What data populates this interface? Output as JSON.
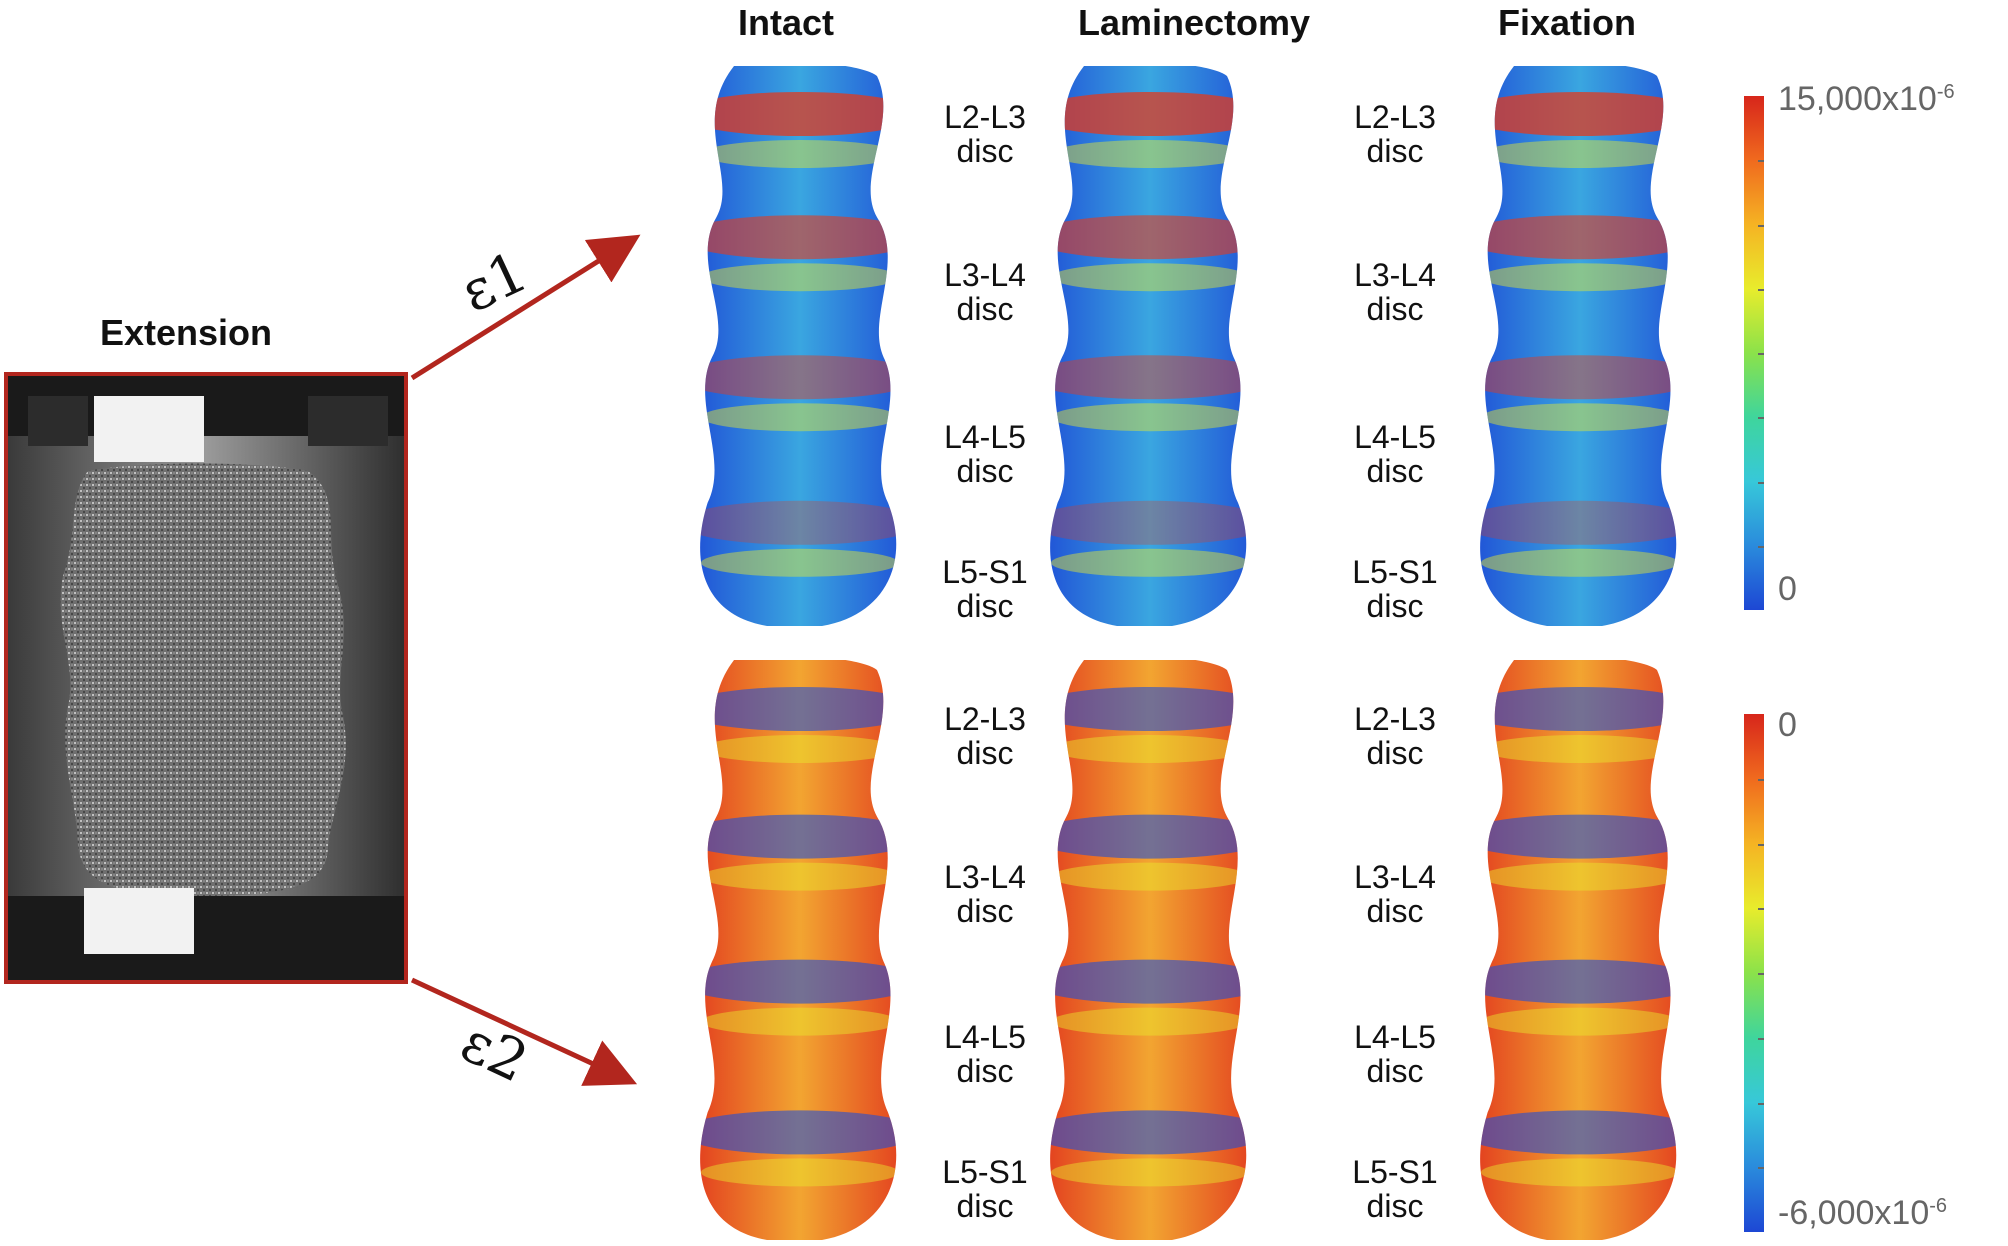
{
  "photo_panel": {
    "label": "Extension"
  },
  "strain_labels": {
    "upper": "ε1",
    "lower": "ε2"
  },
  "columns": [
    {
      "label": "Intact"
    },
    {
      "label": "Laminectomy"
    },
    {
      "label": "Fixation"
    }
  ],
  "discs": [
    {
      "level": "L2-L3",
      "word": "disc"
    },
    {
      "level": "L3-L4",
      "word": "disc"
    },
    {
      "level": "L4-L5",
      "word": "disc"
    },
    {
      "level": "L5-S1",
      "word": "disc"
    }
  ],
  "colorbars": {
    "upper": {
      "max_base": "15,000x10",
      "max_exp": "-6",
      "min": "0",
      "colors": [
        "#d7261b",
        "#f06a1e",
        "#f5b323",
        "#e8ec2c",
        "#8be24a",
        "#3fd59c",
        "#37c8d9",
        "#2a8bdc",
        "#1d47d4"
      ]
    },
    "lower": {
      "max": "0",
      "min_base": "-6,000x10",
      "min_exp": "-6",
      "colors": [
        "#d7261b",
        "#f06a1e",
        "#f5b323",
        "#e8ec2c",
        "#8be24a",
        "#3fd59c",
        "#37c8d9",
        "#2a8bdc",
        "#1d47d4"
      ]
    }
  },
  "colors": {
    "arrow": "#b2261e",
    "strain_high": "#e23a1e",
    "strain_low": "#1f4fd6"
  }
}
